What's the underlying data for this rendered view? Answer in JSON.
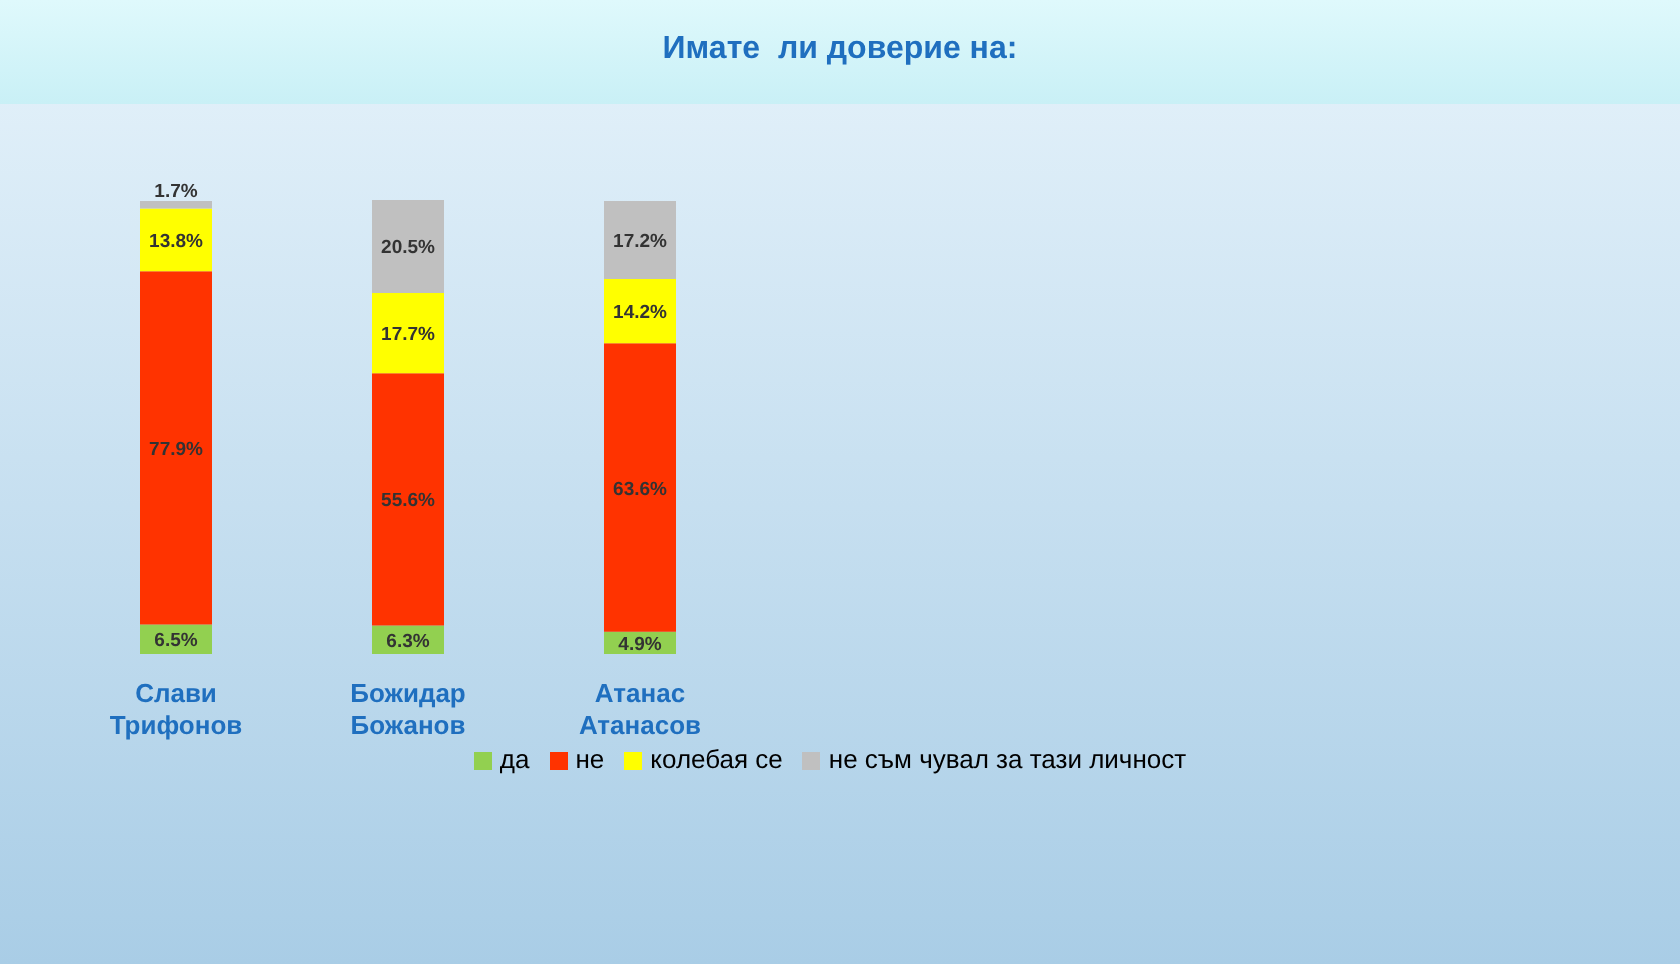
{
  "chart_data": {
    "type": "bar",
    "title": "Имате  ли доверие на:",
    "stacked": true,
    "legend": "bottom",
    "grid": false,
    "categories": [
      "Слави Трифонов",
      "Божидар Божанов",
      "Атанас Атанасов"
    ],
    "series": [
      {
        "name": "да",
        "color": "#92d050",
        "values": [
          6.5,
          6.3,
          4.9
        ],
        "value_labels": [
          "6.5%",
          "6.3%",
          "4.9%"
        ]
      },
      {
        "name": "не",
        "color": "#ff3300",
        "values": [
          77.9,
          55.6,
          63.6
        ],
        "value_labels": [
          "77.9%",
          "55.6%",
          "63.6%"
        ]
      },
      {
        "name": "колебая се",
        "color": "#ffff00",
        "values": [
          13.8,
          17.7,
          14.2
        ],
        "value_labels": [
          "13.8%",
          "17.7%",
          "14.2%"
        ]
      },
      {
        "name": "не съм чувал за тази личност",
        "color": "#c0c0c0",
        "values": [
          1.7,
          20.5,
          17.2
        ],
        "value_labels": [
          "1.7%",
          "20.5%",
          "17.2%"
        ]
      }
    ]
  }
}
